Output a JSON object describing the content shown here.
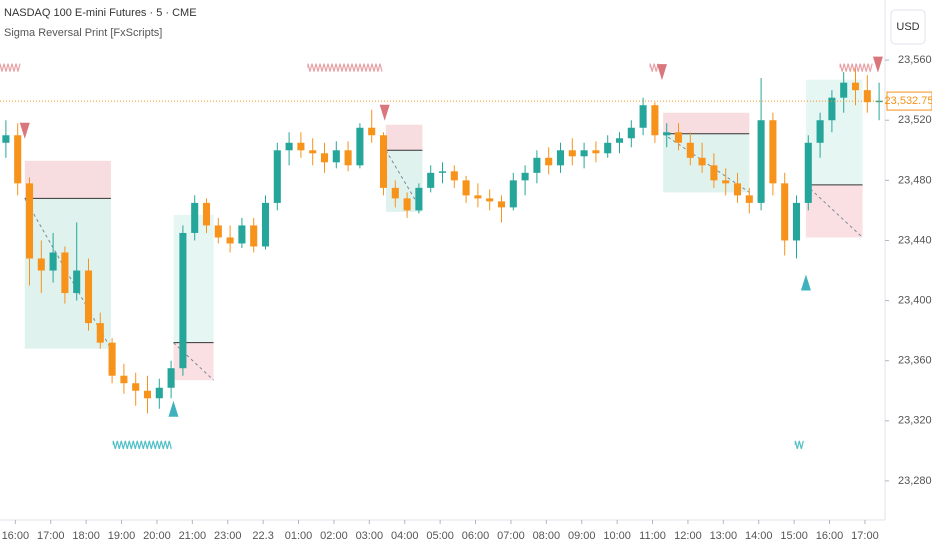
{
  "chart_data": {
    "type": "candlestick",
    "title": "NASDAQ 100 E-mini Futures · 5 · CME",
    "indicator": "Sigma Reversal Print [FxScripts]",
    "currency": "USD",
    "up_color": "#26a69a",
    "down_color": "#f7931a",
    "open": [
      23505,
      23510,
      23478,
      23428,
      23420,
      23432,
      23405,
      23420,
      23385,
      23372,
      23350,
      23345,
      23340,
      23335,
      23342,
      23355,
      23445,
      23465,
      23450,
      23442,
      23438,
      23450,
      23436,
      23465,
      23500,
      23505,
      23500,
      23498,
      23492,
      23500,
      23490,
      23515,
      23510,
      23475,
      23468,
      23460,
      23475,
      23485,
      23486,
      23480,
      23470,
      23468,
      23466,
      23462,
      23480,
      23485,
      23495,
      23490,
      23500,
      23496,
      23500,
      23498,
      23505,
      23508,
      23515,
      23530,
      23510,
      23512,
      23505,
      23495,
      23490,
      23480,
      23478,
      23470,
      23465,
      23520,
      23478,
      23440,
      23465,
      23505,
      23520,
      23535,
      23545,
      23540,
      23532
    ],
    "high": [
      23520,
      23518,
      23482,
      23440,
      23445,
      23436,
      23452,
      23428,
      23392,
      23375,
      23358,
      23352,
      23350,
      23348,
      23360,
      23450,
      23470,
      23468,
      23455,
      23450,
      23455,
      23455,
      23470,
      23505,
      23512,
      23512,
      23508,
      23505,
      23506,
      23506,
      23518,
      23527,
      23512,
      23480,
      23472,
      23478,
      23490,
      23492,
      23490,
      23483,
      23478,
      23474,
      23470,
      23485,
      23490,
      23500,
      23502,
      23505,
      23508,
      23505,
      23506,
      23510,
      23512,
      23520,
      23535,
      23532,
      23518,
      23518,
      23512,
      23505,
      23498,
      23488,
      23485,
      23475,
      23548,
      23525,
      23485,
      23470,
      23510,
      23525,
      23540,
      23552,
      23555,
      23550,
      23545
    ],
    "low": [
      23495,
      23470,
      23410,
      23405,
      23412,
      23398,
      23400,
      23380,
      23368,
      23345,
      23338,
      23330,
      23325,
      23328,
      23335,
      23350,
      23440,
      23445,
      23438,
      23432,
      23435,
      23432,
      23434,
      23460,
      23490,
      23495,
      23490,
      23485,
      23488,
      23486,
      23488,
      23505,
      23470,
      23462,
      23455,
      23458,
      23472,
      23478,
      23475,
      23465,
      23462,
      23460,
      23452,
      23460,
      23470,
      23478,
      23484,
      23485,
      23490,
      23488,
      23492,
      23495,
      23498,
      23502,
      23510,
      23505,
      23502,
      23500,
      23490,
      23485,
      23475,
      23470,
      23465,
      23458,
      23460,
      23470,
      23430,
      23428,
      23460,
      23495,
      23512,
      23525,
      23530,
      23525,
      23520
    ],
    "close": [
      23510,
      23478,
      23428,
      23420,
      23432,
      23405,
      23420,
      23385,
      23372,
      23350,
      23345,
      23340,
      23335,
      23342,
      23355,
      23445,
      23465,
      23450,
      23442,
      23438,
      23450,
      23436,
      23465,
      23500,
      23505,
      23500,
      23498,
      23492,
      23500,
      23490,
      23515,
      23510,
      23475,
      23468,
      23460,
      23475,
      23485,
      23486,
      23480,
      23470,
      23468,
      23466,
      23462,
      23480,
      23485,
      23495,
      23490,
      23500,
      23496,
      23500,
      23498,
      23505,
      23508,
      23515,
      23530,
      23510,
      23512,
      23505,
      23495,
      23490,
      23480,
      23478,
      23470,
      23465,
      23520,
      23478,
      23440,
      23465,
      23505,
      23520,
      23535,
      23545,
      23540,
      23532,
      23533
    ],
    "last_price": {
      "value": 23532.75,
      "label": "23,532.75"
    },
    "xlim": [
      0,
      75
    ],
    "ylim": [
      23254,
      23600
    ],
    "xticks": [
      {
        "value": 1.3,
        "label": "16:00"
      },
      {
        "value": 4.3,
        "label": "17:00"
      },
      {
        "value": 7.3,
        "label": "18:00"
      },
      {
        "value": 10.3,
        "label": "19:00"
      },
      {
        "value": 13.3,
        "label": "20:00"
      },
      {
        "value": 16.3,
        "label": "21:00"
      },
      {
        "value": 19.3,
        "label": "23:00"
      },
      22.3,
      {
        "value": 25.3,
        "label": "01:00"
      },
      {
        "value": 28.3,
        "label": "02:00"
      },
      {
        "value": 31.3,
        "label": "03:00"
      },
      {
        "value": 34.3,
        "label": "04:00"
      },
      {
        "value": 37.3,
        "label": "05:00"
      },
      {
        "value": 40.3,
        "label": "06:00"
      },
      {
        "value": 43.3,
        "label": "07:00"
      },
      {
        "value": 46.3,
        "label": "08:00"
      },
      {
        "value": 49.3,
        "label": "09:00"
      },
      {
        "value": 52.3,
        "label": "10:00"
      },
      {
        "value": 55.3,
        "label": "11:00"
      },
      {
        "value": 58.3,
        "label": "12:00"
      },
      {
        "value": 61.3,
        "label": "13:00"
      },
      {
        "value": 64.3,
        "label": "14:00"
      },
      {
        "value": 67.3,
        "label": "15:00"
      },
      {
        "value": 70.3,
        "label": "16:00"
      },
      {
        "value": 73.3,
        "label": "17:00"
      }
    ],
    "yticks": [
      {
        "value": 23560,
        "label": "23,560.00"
      },
      {
        "value": 23520,
        "label": "23,520.00"
      },
      {
        "value": 23480,
        "label": "23,480.00"
      },
      {
        "value": 23440,
        "label": "23,440.00"
      },
      {
        "value": 23400,
        "label": "23,400.00"
      },
      {
        "value": 23360,
        "label": "23,360.00"
      },
      {
        "value": 23320,
        "label": "23,320.00"
      },
      {
        "value": 23280,
        "label": "23,280.00"
      }
    ],
    "zones": [
      {
        "x": [
          2.1,
          9.4
        ],
        "top": 23493,
        "mid": 23468,
        "bottom": 23368,
        "upper_color": "#f8dde0",
        "lower_color": "#dff2ee"
      },
      {
        "x": [
          14.7,
          18.1
        ],
        "top": 23457,
        "mid": 23372,
        "bottom": 23347,
        "upper_color": "#e6f7f3",
        "lower_color": "#fbe0e3"
      },
      {
        "x": [
          32.7,
          35.8
        ],
        "top": 23517,
        "mid": 23500,
        "bottom": 23459,
        "upper_color": "#f8dde0",
        "lower_color": "#dff2ee"
      },
      {
        "x": [
          56.2,
          63.5
        ],
        "top": 23525,
        "mid": 23511,
        "bottom": 23472,
        "upper_color": "#f8dde0",
        "lower_color": "#dff2ee"
      },
      {
        "x": [
          68.3,
          73.1
        ],
        "top": 23547,
        "mid": 23477,
        "bottom": 23442,
        "upper_color": "#e6f7f3",
        "lower_color": "#fbe0e3"
      }
    ],
    "signals": [
      {
        "x": 2.1,
        "price": 23513,
        "direction": "down"
      },
      {
        "x": 32.6,
        "price": 23525,
        "direction": "down"
      },
      {
        "x": 56.1,
        "price": 23552,
        "direction": "down"
      },
      {
        "x": 74.4,
        "price": 23557,
        "direction": "down"
      },
      {
        "x": 14.7,
        "price": 23328,
        "direction": "up"
      },
      {
        "x": 68.3,
        "price": 23412,
        "direction": "up"
      }
    ],
    "bands": [
      {
        "x": [
          0,
          1.7
        ],
        "price": 23555,
        "direction": "down"
      },
      {
        "x": [
          26.1,
          32.4
        ],
        "price": 23555,
        "direction": "down"
      },
      {
        "x": [
          55.1,
          55.9
        ],
        "price": 23555,
        "direction": "down"
      },
      {
        "x": [
          71.2,
          74.0
        ],
        "price": 23555,
        "direction": "down"
      },
      {
        "x": [
          9.6,
          14.6
        ],
        "price": 23304,
        "direction": "up"
      },
      {
        "x": [
          67.4,
          68.1
        ],
        "price": 23304,
        "direction": "up"
      }
    ]
  }
}
